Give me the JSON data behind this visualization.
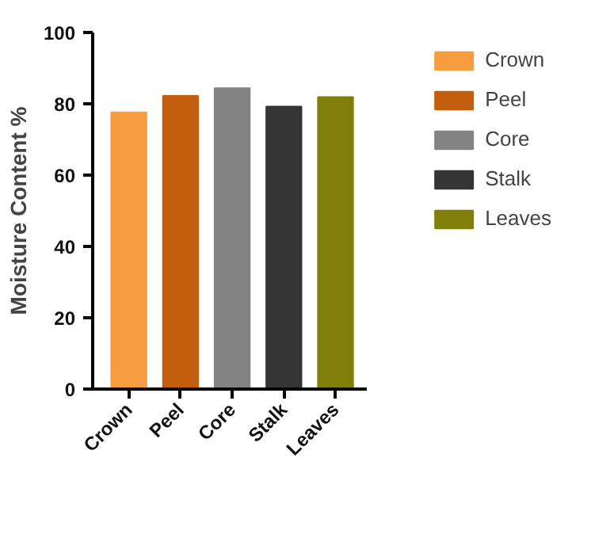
{
  "chart_data": {
    "type": "bar",
    "ylabel": "Moisture Content %",
    "categories": [
      "Crown",
      "Peel",
      "Core",
      "Stalk",
      "Leaves"
    ],
    "series": [
      {
        "name": "Crown",
        "color": "#f89d3f",
        "values": [
          77.6,
          null,
          null,
          null,
          null
        ]
      },
      {
        "name": "Peel",
        "color": "#c25e0d",
        "values": [
          null,
          82.2,
          null,
          null,
          null
        ]
      },
      {
        "name": "Core",
        "color": "#838383",
        "values": [
          null,
          null,
          84.4,
          null,
          null
        ]
      },
      {
        "name": "Stalk",
        "color": "#353535",
        "values": [
          null,
          null,
          null,
          79.2,
          null
        ]
      },
      {
        "name": "Leaves",
        "color": "#7f7f0a",
        "values": [
          null,
          null,
          null,
          null,
          81.9
        ]
      }
    ],
    "ylim": [
      0,
      100
    ],
    "yticks": [
      0,
      20,
      40,
      60,
      80,
      100
    ],
    "grid": false,
    "legend": "right"
  }
}
